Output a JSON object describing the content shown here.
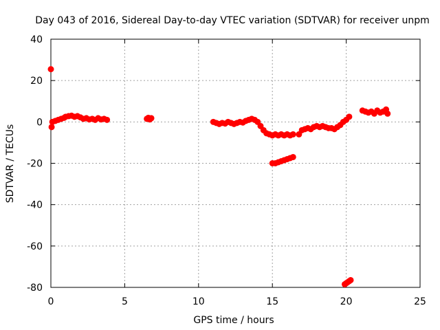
{
  "chart_data": {
    "type": "scatter",
    "title": "Day 043 of 2016, Sidereal Day-to-day VTEC variation (SDTVAR) for receiver unpm",
    "xlabel": "GPS time / hours",
    "ylabel": "SDTVAR / TECUs",
    "xlim": [
      0,
      25
    ],
    "ylim": [
      -80,
      40
    ],
    "xticks": [
      0,
      5,
      10,
      15,
      20,
      25
    ],
    "yticks": [
      -80,
      -60,
      -40,
      -20,
      0,
      20,
      40
    ],
    "grid": true,
    "marker_color": "#ff0000",
    "series": [
      {
        "name": "SDTVAR",
        "x": [
          0.0,
          0.05,
          0.1,
          0.3,
          0.5,
          0.7,
          0.9,
          1.0,
          1.2,
          1.4,
          1.6,
          1.8,
          2.0,
          2.2,
          2.4,
          2.6,
          2.8,
          3.0,
          3.2,
          3.4,
          3.6,
          3.8,
          6.5,
          6.6,
          6.7,
          6.8,
          11.0,
          11.2,
          11.4,
          11.6,
          11.8,
          12.0,
          12.2,
          12.4,
          12.6,
          12.8,
          13.0,
          13.2,
          13.4,
          13.6,
          13.8,
          14.0,
          14.2,
          14.4,
          14.6,
          14.8,
          15.0,
          15.2,
          15.4,
          15.6,
          15.8,
          16.0,
          16.2,
          16.4,
          15.0,
          15.2,
          15.4,
          15.6,
          15.8,
          16.0,
          16.2,
          16.4,
          16.8,
          17.0,
          17.2,
          17.4,
          17.6,
          17.8,
          18.0,
          18.2,
          18.4,
          18.6,
          18.8,
          19.0,
          19.2,
          19.4,
          19.6,
          19.8,
          20.0,
          20.2,
          19.9,
          20.0,
          20.1,
          20.2,
          20.3,
          21.1,
          21.3,
          21.5,
          21.7,
          21.9,
          22.1,
          22.3,
          22.5,
          22.7,
          22.8
        ],
        "y": [
          25.5,
          -2.5,
          0.0,
          0.5,
          1.0,
          1.5,
          2.0,
          2.5,
          2.8,
          3.0,
          2.5,
          2.8,
          2.2,
          1.5,
          1.8,
          1.2,
          1.5,
          1.0,
          1.8,
          1.2,
          1.5,
          1.0,
          1.5,
          2.0,
          1.2,
          1.8,
          0.0,
          -0.5,
          -1.0,
          -0.5,
          -0.8,
          0.0,
          -0.5,
          -1.0,
          -0.5,
          0.0,
          -0.3,
          0.5,
          1.0,
          1.5,
          1.0,
          0.0,
          -2.0,
          -4.0,
          -5.5,
          -6.0,
          -6.5,
          -6.0,
          -6.5,
          -6.0,
          -6.5,
          -6.0,
          -6.5,
          -6.0,
          -20.0,
          -20.0,
          -19.5,
          -19.0,
          -18.5,
          -18.0,
          -17.5,
          -17.0,
          -6.0,
          -4.0,
          -3.5,
          -3.0,
          -3.5,
          -2.5,
          -2.0,
          -2.5,
          -2.0,
          -2.5,
          -3.0,
          -3.0,
          -3.5,
          -2.5,
          -1.5,
          0.0,
          1.0,
          2.5,
          -78.5,
          -78.0,
          -77.5,
          -77.0,
          -76.5,
          5.5,
          5.0,
          4.5,
          5.0,
          4.0,
          5.5,
          4.5,
          5.0,
          6.0,
          4.0
        ]
      }
    ]
  }
}
